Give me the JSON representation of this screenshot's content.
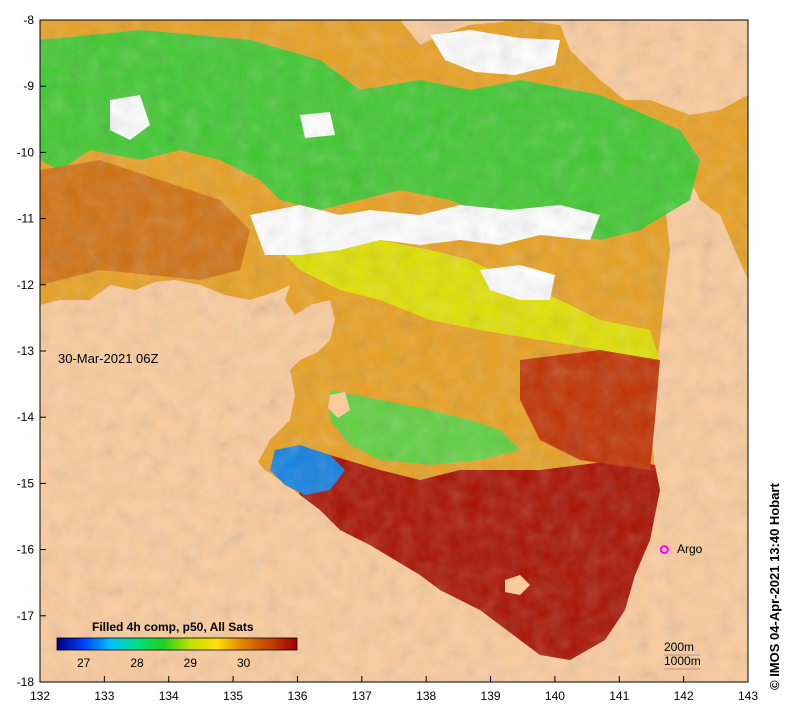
{
  "map": {
    "date_label": "30-Mar-2021 06Z",
    "longitude_ticks": [
      "132",
      "133",
      "134",
      "135",
      "136",
      "137",
      "138",
      "139",
      "140",
      "141",
      "142",
      "143"
    ],
    "latitude_ticks": [
      "-8",
      "-9",
      "-10",
      "-11",
      "-12",
      "-13",
      "-14",
      "-15",
      "-16",
      "-17",
      "-18"
    ],
    "lon_range": [
      132,
      143
    ],
    "lat_range": [
      -8,
      -18
    ],
    "land_color": "#fbcb9d",
    "cloud_color": "#ffffff",
    "argo": {
      "label": "Argo",
      "lon": 141.7,
      "lat": -16.0,
      "color": "#ff00ff"
    },
    "contours": [
      "200m",
      "1000m"
    ]
  },
  "colorbar": {
    "title": "Filled 4h comp, p50, All Sats",
    "tick_labels": [
      "27",
      "28",
      "29",
      "30"
    ],
    "range": [
      26.5,
      31
    ],
    "colors": [
      "#00007f",
      "#0040ff",
      "#00c0ff",
      "#00e080",
      "#20d020",
      "#c0e000",
      "#ffe000",
      "#e08000",
      "#c04000",
      "#a00000"
    ]
  },
  "credit": "© IMOS 04-Apr-2021 13:40 Hobart"
}
